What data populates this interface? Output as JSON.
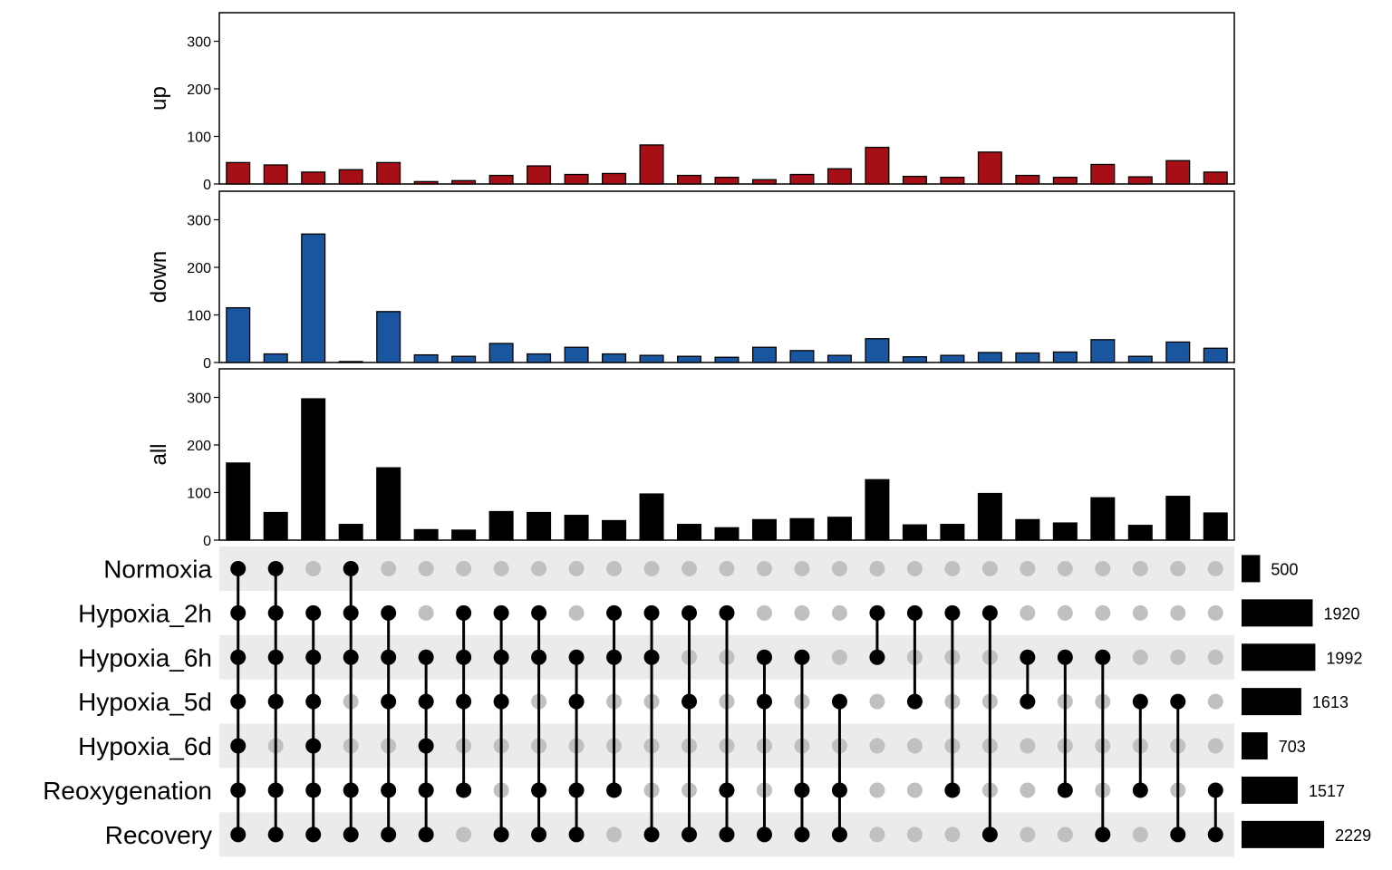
{
  "chart_data": {
    "type": "bar",
    "subtype": "upset",
    "n_intersections": 27,
    "panels": [
      {
        "name": "up",
        "ylabel": "up",
        "color": "#a50f15",
        "ylim": [
          0,
          360
        ],
        "yticks": [
          "0",
          "100",
          "200",
          "300"
        ],
        "values": [
          45,
          40,
          25,
          30,
          45,
          5,
          7,
          18,
          38,
          20,
          22,
          82,
          18,
          14,
          9,
          20,
          32,
          77,
          16,
          14,
          67,
          18,
          14,
          41,
          15,
          49,
          25
        ]
      },
      {
        "name": "down",
        "ylabel": "down",
        "color": "#1a56a0",
        "ylim": [
          0,
          360
        ],
        "yticks": [
          "0",
          "100",
          "200",
          "300"
        ],
        "values": [
          115,
          18,
          270,
          2,
          107,
          16,
          13,
          40,
          18,
          32,
          18,
          15,
          13,
          11,
          32,
          25,
          15,
          50,
          12,
          15,
          21,
          20,
          22,
          48,
          13,
          43,
          30
        ]
      },
      {
        "name": "all",
        "ylabel": "all",
        "color": "#000000",
        "ylim": [
          0,
          360
        ],
        "yticks": [
          "0",
          "100",
          "200",
          "300"
        ],
        "values": [
          162,
          58,
          297,
          33,
          152,
          22,
          21,
          60,
          58,
          52,
          41,
          97,
          33,
          26,
          43,
          45,
          48,
          127,
          32,
          33,
          98,
          43,
          36,
          89,
          31,
          92,
          57
        ]
      }
    ],
    "sets": [
      {
        "name": "Normoxia",
        "size": 500,
        "size_label": "500"
      },
      {
        "name": "Hypoxia_2h",
        "size": 1920,
        "size_label": "1920"
      },
      {
        "name": "Hypoxia_6h",
        "size": 1992,
        "size_label": "1992"
      },
      {
        "name": "Hypoxia_5d",
        "size": 1613,
        "size_label": "1613"
      },
      {
        "name": "Hypoxia_6d",
        "size": 703,
        "size_label": "703"
      },
      {
        "name": "Reoxygenation",
        "size": 1517,
        "size_label": "1517"
      },
      {
        "name": "Recovery",
        "size": 2229,
        "size_label": "2229"
      }
    ],
    "intersections": [
      [
        0,
        1,
        2,
        3,
        4,
        5,
        6
      ],
      [
        0,
        1,
        2,
        3,
        5,
        6
      ],
      [
        1,
        2,
        3,
        4,
        5,
        6
      ],
      [
        0,
        1,
        2,
        5,
        6
      ],
      [
        1,
        2,
        3,
        5,
        6
      ],
      [
        2,
        3,
        4,
        5,
        6
      ],
      [
        1,
        2,
        3,
        5
      ],
      [
        1,
        2,
        3,
        6
      ],
      [
        1,
        2,
        5,
        6
      ],
      [
        2,
        3,
        5,
        6
      ],
      [
        1,
        2,
        5
      ],
      [
        1,
        2,
        6
      ],
      [
        1,
        3,
        6
      ],
      [
        1,
        5,
        6
      ],
      [
        2,
        3,
        6
      ],
      [
        2,
        5,
        6
      ],
      [
        3,
        5,
        6
      ],
      [
        1,
        2
      ],
      [
        1,
        3
      ],
      [
        1,
        5
      ],
      [
        1,
        6
      ],
      [
        2,
        3
      ],
      [
        2,
        5
      ],
      [
        2,
        6
      ],
      [
        3,
        5
      ],
      [
        3,
        6
      ],
      [
        5,
        6
      ]
    ],
    "matrix_colors": {
      "active": "#000000",
      "inactive": "#c0c0c0",
      "stripe": "#ebebeb"
    },
    "size_bar_color": "#000000"
  }
}
